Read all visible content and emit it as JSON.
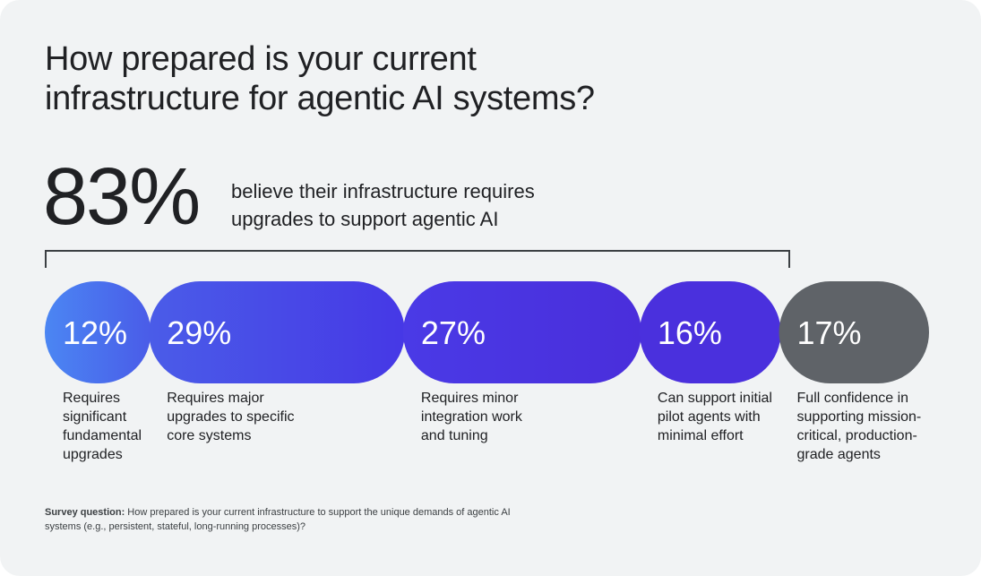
{
  "title_lines": [
    "How prepared is your current",
    "infrastructure for agentic AI systems?"
  ],
  "headline": {
    "value": "83%",
    "desc_lines": [
      "believe their infrastructure requires",
      "upgrades to support agentic AI"
    ]
  },
  "chart_data": {
    "type": "bar",
    "orientation": "horizontal-stacked",
    "title": "How prepared is your current infrastructure for agentic AI systems?",
    "unit": "%",
    "categories": [
      "Requires significant fundamental upgrades",
      "Requires major upgrades to specific core systems",
      "Requires minor integration work and tuning",
      "Can support initial pilot agents with minimal effort",
      "Full confidence in supporting mission-critical, production-grade agents"
    ],
    "values": [
      12,
      29,
      27,
      16,
      17
    ],
    "value_labels": [
      "12%",
      "29%",
      "27%",
      "16%",
      "17%"
    ],
    "colors": [
      "#4285f4",
      "#4a63e7",
      "#4a45ec",
      "#4a34e0",
      "#5f6368"
    ],
    "bracketed_total": {
      "value": "83%",
      "covers_categories": [
        0,
        1,
        2,
        3
      ]
    },
    "legend": "none",
    "grid": false
  },
  "segments": [
    {
      "pct": "12%",
      "lines": [
        "Requires",
        "significant",
        "fundamental",
        "upgrades"
      ]
    },
    {
      "pct": "29%",
      "lines": [
        "Requires major",
        "upgrades to specific",
        "core systems"
      ]
    },
    {
      "pct": "27%",
      "lines": [
        "Requires minor",
        "integration work",
        "and tuning"
      ]
    },
    {
      "pct": "16%",
      "lines": [
        "Can support initial",
        "pilot agents with",
        "minimal effort"
      ]
    },
    {
      "pct": "17%",
      "lines": [
        "Full confidence in",
        "supporting mission-",
        "critical, production-",
        "grade agents"
      ]
    }
  ],
  "footnote": {
    "bold": "Survey question:",
    "text": " How prepared is your current infrastructure to support the unique demands of agentic AI systems (e.g., persistent, stateful, long-running processes)?"
  }
}
